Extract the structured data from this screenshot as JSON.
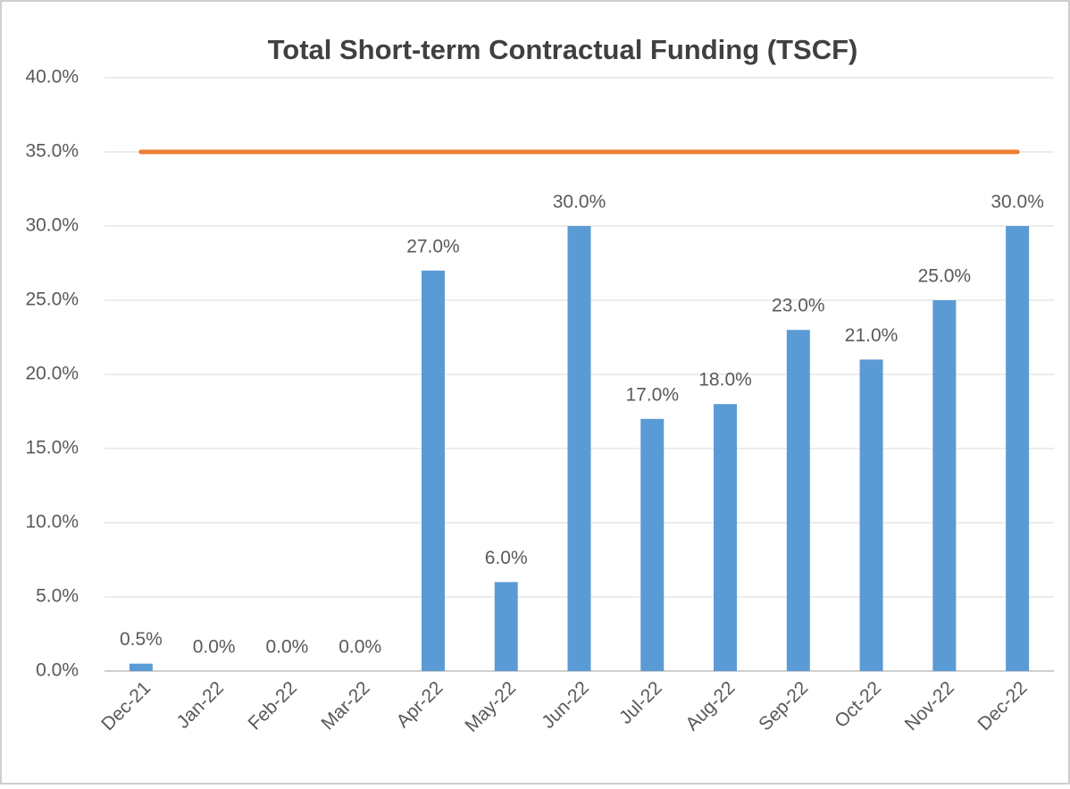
{
  "chart_data": {
    "type": "bar",
    "title": "Total Short-term Contractual Funding (TSCF)",
    "categories": [
      "Dec-21",
      "Jan-22",
      "Feb-22",
      "Mar-22",
      "Apr-22",
      "May-22",
      "Jun-22",
      "Jul-22",
      "Aug-22",
      "Sep-22",
      "Oct-22",
      "Nov-22",
      "Dec-22"
    ],
    "series": [
      {
        "type": "bar",
        "color": "#5b9bd5",
        "values": [
          0.5,
          0,
          0,
          0,
          27,
          6,
          30,
          17,
          18,
          23,
          21,
          25,
          30
        ],
        "value_labels": [
          "0.5%",
          "0.0%",
          "0.0%",
          "0.0%",
          "27.0%",
          "6.0%",
          "30.0%",
          "17.0%",
          "18.0%",
          "23.0%",
          "21.0%",
          "25.0%",
          "30.0%"
        ]
      },
      {
        "type": "line",
        "color": "#ed7d31",
        "values": [
          35,
          35,
          35,
          35,
          35,
          35,
          35,
          35,
          35,
          35,
          35,
          35,
          35
        ]
      }
    ],
    "ylim": [
      0,
      40
    ],
    "yticks": [
      {
        "value": 0,
        "label": "0.0%"
      },
      {
        "value": 5,
        "label": "5.0%"
      },
      {
        "value": 10,
        "label": "10.0%"
      },
      {
        "value": 15,
        "label": "15.0%"
      },
      {
        "value": 20,
        "label": "20.0%"
      },
      {
        "value": 25,
        "label": "25.0%"
      },
      {
        "value": 30,
        "label": "30.0%"
      },
      {
        "value": 35,
        "label": "35.0%"
      },
      {
        "value": 40,
        "label": "40.0%"
      }
    ],
    "grid": true
  }
}
